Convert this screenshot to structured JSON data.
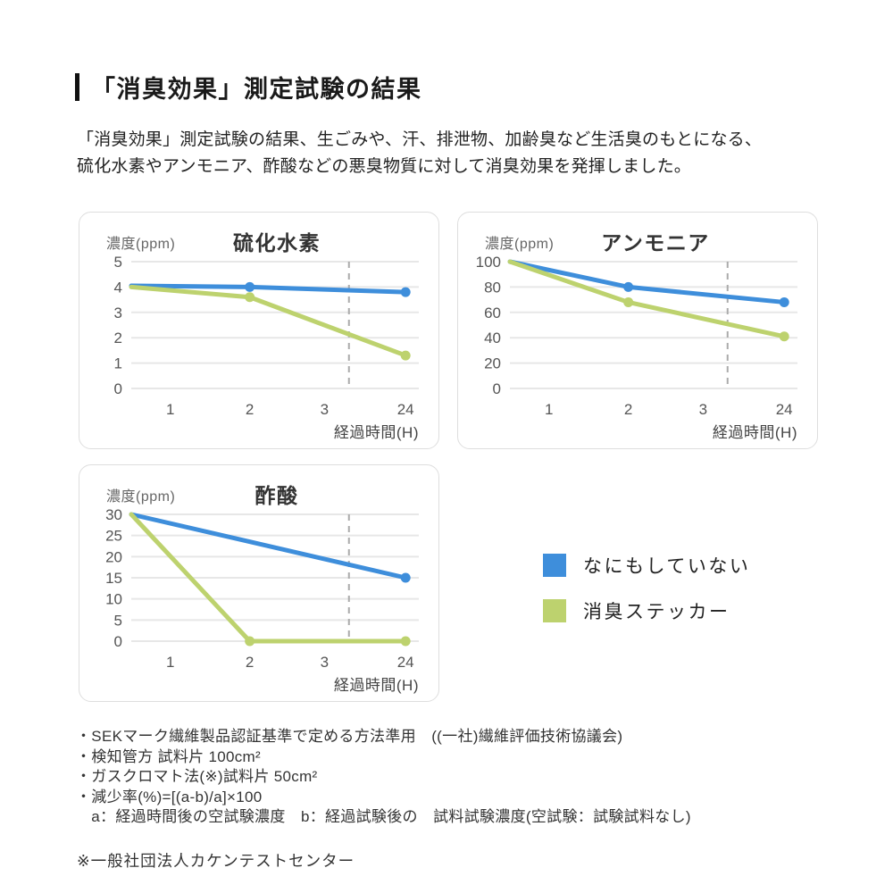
{
  "page": {
    "title": "「消臭効果」測定試験の結果",
    "intro_line1": "「消臭効果」測定試験の結果、生ごみや、汗、排泄物、加齢臭など生活臭のもとになる、",
    "intro_line2": "硫化水素やアンモニア、酢酸などの悪臭物質に対して消臭効果を発揮しました。"
  },
  "colors": {
    "blue": "#3e8edb",
    "green": "#bdd26e",
    "grid": "#e7e7e7",
    "dashed": "#ababab",
    "tick_text": "#555555"
  },
  "legend": {
    "items": [
      {
        "label": "なにもしていない",
        "color": "#3e8edb"
      },
      {
        "label": "消臭ステッカー",
        "color": "#bdd26e"
      }
    ]
  },
  "chart_data": [
    {
      "type": "line",
      "title": "硫化水素",
      "ylabel": "濃度(ppm)",
      "xlabel": "経過時間(H)",
      "x_ticks": [
        "1",
        "2",
        "3",
        "24"
      ],
      "y_ticks": [
        0,
        1,
        2,
        3,
        4,
        5
      ],
      "ylim": [
        0,
        5
      ],
      "dashed_guide": "between 3 and 24",
      "grid": "horizontal only",
      "series": [
        {
          "name": "なにもしていない",
          "color": "#3e8edb",
          "points": [
            {
              "t": "0",
              "v": 4.05
            },
            {
              "t": "2",
              "v": 4.0,
              "marker": true
            },
            {
              "t": "24",
              "v": 3.8,
              "marker": true
            }
          ]
        },
        {
          "name": "消臭ステッカー",
          "color": "#bdd26e",
          "points": [
            {
              "t": "0",
              "v": 4.0
            },
            {
              "t": "2",
              "v": 3.6,
              "marker": true
            },
            {
              "t": "24",
              "v": 1.3,
              "marker": true
            }
          ]
        }
      ]
    },
    {
      "type": "line",
      "title": "アンモニア",
      "ylabel": "濃度(ppm)",
      "xlabel": "経過時間(H)",
      "x_ticks": [
        "1",
        "2",
        "3",
        "24"
      ],
      "y_ticks": [
        0,
        20,
        40,
        60,
        80,
        100
      ],
      "ylim": [
        0,
        100
      ],
      "dashed_guide": "between 3 and 24",
      "grid": "horizontal only",
      "series": [
        {
          "name": "なにもしていない",
          "color": "#3e8edb",
          "points": [
            {
              "t": "0",
              "v": 100
            },
            {
              "t": "2",
              "v": 80,
              "marker": true
            },
            {
              "t": "24",
              "v": 68,
              "marker": true
            }
          ]
        },
        {
          "name": "消臭ステッカー",
          "color": "#bdd26e",
          "points": [
            {
              "t": "0",
              "v": 100
            },
            {
              "t": "2",
              "v": 68,
              "marker": true
            },
            {
              "t": "24",
              "v": 41,
              "marker": true
            }
          ]
        }
      ]
    },
    {
      "type": "line",
      "title": "酢酸",
      "ylabel": "濃度(ppm)",
      "xlabel": "経過時間(H)",
      "x_ticks": [
        "1",
        "2",
        "3",
        "24"
      ],
      "y_ticks": [
        0,
        5,
        10,
        15,
        20,
        25,
        30
      ],
      "ylim": [
        0,
        30
      ],
      "dashed_guide": "between 3 and 24",
      "grid": "horizontal only",
      "series": [
        {
          "name": "なにもしていない",
          "color": "#3e8edb",
          "points": [
            {
              "t": "0",
              "v": 30
            },
            {
              "t": "24",
              "v": 15,
              "marker": true
            }
          ]
        },
        {
          "name": "消臭ステッカー",
          "color": "#bdd26e",
          "points": [
            {
              "t": "0",
              "v": 30
            },
            {
              "t": "2",
              "v": 0,
              "marker": true
            },
            {
              "t": "24",
              "v": 0,
              "marker": true
            }
          ]
        }
      ]
    }
  ],
  "footnotes": {
    "items": [
      "・SEKマーク繊維製品認証基準で定める方法準用　((一社)繊維評価技術協議会)",
      "・検知管方 試料片 100cm²",
      "・ガスクロマト法(※)試料片 50cm²",
      "・減少率(%)=[(a-b)/a]×100",
      "　a：経過時間後の空試験濃度　b：経過試験後の　試料試験濃度(空試験：試験試料なし)"
    ],
    "asterisk_note": "※一般社団法人カケンテストセンター"
  }
}
